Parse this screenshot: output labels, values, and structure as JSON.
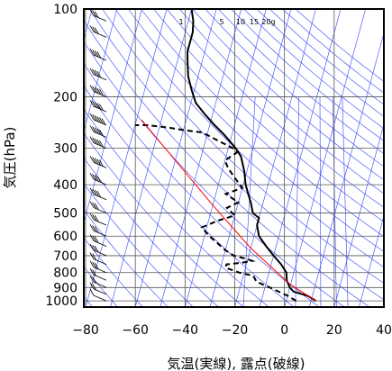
{
  "chart_data": {
    "type": "line",
    "title": "",
    "xlabel": "気温(実線), 露点(破線)",
    "ylabel": "気圧(hPa)",
    "xlim": [
      -80,
      40
    ],
    "ylim": [
      1050,
      100
    ],
    "y_scale": "log",
    "x_ticks": [
      "−80",
      "−60",
      "−40",
      "−20",
      "0",
      "20",
      "40"
    ],
    "x_tick_values": [
      -80,
      -60,
      -40,
      -20,
      0,
      20,
      40
    ],
    "y_ticks": [
      "100",
      "200",
      "300",
      "400",
      "500",
      "600",
      "700",
      "800",
      "900",
      "1000"
    ],
    "y_tick_values": [
      100,
      200,
      300,
      400,
      500,
      600,
      700,
      800,
      900,
      1000
    ],
    "grid": true,
    "mixing_ratio_labels": [
      "1",
      "5",
      "10",
      "15",
      "20g"
    ],
    "mixing_ratio_values": [
      1,
      5,
      10,
      15,
      20
    ],
    "dry_adiabat_thetas": [
      -80,
      -70,
      -60,
      -50,
      -40,
      -30,
      -20,
      -10,
      0,
      10,
      20,
      30,
      40,
      50,
      60,
      70,
      80,
      90,
      100,
      110,
      120,
      130,
      140,
      150,
      160,
      170,
      180,
      190,
      200
    ],
    "colors": {
      "temperature": "#000000",
      "dewpoint": "#000000",
      "parcel": "#ff0000",
      "adiabats": "#3344ff",
      "grid": "#555555"
    },
    "series": [
      {
        "id": "temperature",
        "style": "solid",
        "points": [
          [
            12,
            1000
          ],
          [
            8,
            960
          ],
          [
            2,
            930
          ],
          [
            0,
            900
          ],
          [
            -2,
            850
          ],
          [
            -3,
            800
          ],
          [
            -6,
            750
          ],
          [
            -10,
            700
          ],
          [
            -14,
            650
          ],
          [
            -18,
            600
          ],
          [
            -20,
            550
          ],
          [
            -20,
            520
          ],
          [
            -23,
            500
          ],
          [
            -25,
            460
          ],
          [
            -27,
            430
          ],
          [
            -29,
            400
          ],
          [
            -31,
            360
          ],
          [
            -34,
            320
          ],
          [
            -37,
            300
          ],
          [
            -43,
            270
          ],
          [
            -48,
            250
          ],
          [
            -53,
            230
          ],
          [
            -58,
            210
          ],
          [
            -61,
            190
          ],
          [
            -64,
            170
          ],
          [
            -66,
            150
          ],
          [
            -67,
            140
          ],
          [
            -67,
            120
          ],
          [
            -68,
            110
          ],
          [
            -70,
            100
          ]
        ]
      },
      {
        "id": "dewpoint",
        "style": "dashed",
        "points": [
          [
            4,
            1000
          ],
          [
            0,
            960
          ],
          [
            -4,
            930
          ],
          [
            -8,
            900
          ],
          [
            -14,
            860
          ],
          [
            -16,
            820
          ],
          [
            -22,
            800
          ],
          [
            -28,
            770
          ],
          [
            -28,
            750
          ],
          [
            -22,
            740
          ],
          [
            -18,
            730
          ],
          [
            -20,
            720
          ],
          [
            -26,
            700
          ],
          [
            -30,
            670
          ],
          [
            -38,
            600
          ],
          [
            -42,
            560
          ],
          [
            -36,
            530
          ],
          [
            -30,
            510
          ],
          [
            -34,
            480
          ],
          [
            -30,
            460
          ],
          [
            -36,
            430
          ],
          [
            -30,
            410
          ],
          [
            -34,
            380
          ],
          [
            -38,
            350
          ],
          [
            -40,
            330
          ],
          [
            -36,
            310
          ],
          [
            -38,
            300
          ],
          [
            -46,
            280
          ],
          [
            -52,
            265
          ],
          [
            -60,
            260
          ],
          [
            -66,
            255
          ],
          [
            -75,
            250
          ],
          [
            -80,
            250
          ]
        ]
      },
      {
        "id": "parcel",
        "style": "solid",
        "points": [
          [
            12,
            1000
          ],
          [
            0,
            880
          ],
          [
            -20,
            660
          ],
          [
            -40,
            470
          ],
          [
            -60,
            330
          ],
          [
            -78,
            240
          ]
        ]
      }
    ],
    "wind_barbs": [
      {
        "p": 1000,
        "speed": 10
      },
      {
        "p": 950,
        "speed": 15
      },
      {
        "p": 900,
        "speed": 15
      },
      {
        "p": 850,
        "speed": 20
      },
      {
        "p": 800,
        "speed": 25
      },
      {
        "p": 750,
        "speed": 20
      },
      {
        "p": 700,
        "speed": 25
      },
      {
        "p": 650,
        "speed": 30
      },
      {
        "p": 600,
        "speed": 30
      },
      {
        "p": 550,
        "speed": 25
      },
      {
        "p": 500,
        "speed": 30
      },
      {
        "p": 450,
        "speed": 35
      },
      {
        "p": 400,
        "speed": 40
      },
      {
        "p": 350,
        "speed": 45
      },
      {
        "p": 300,
        "speed": 50
      },
      {
        "p": 275,
        "speed": 50
      },
      {
        "p": 250,
        "speed": 55
      },
      {
        "p": 225,
        "speed": 50
      },
      {
        "p": 200,
        "speed": 45
      },
      {
        "p": 175,
        "speed": 40
      },
      {
        "p": 150,
        "speed": 35
      },
      {
        "p": 125,
        "speed": 30
      },
      {
        "p": 110,
        "speed": 25
      },
      {
        "p": 100,
        "speed": 20
      }
    ]
  }
}
